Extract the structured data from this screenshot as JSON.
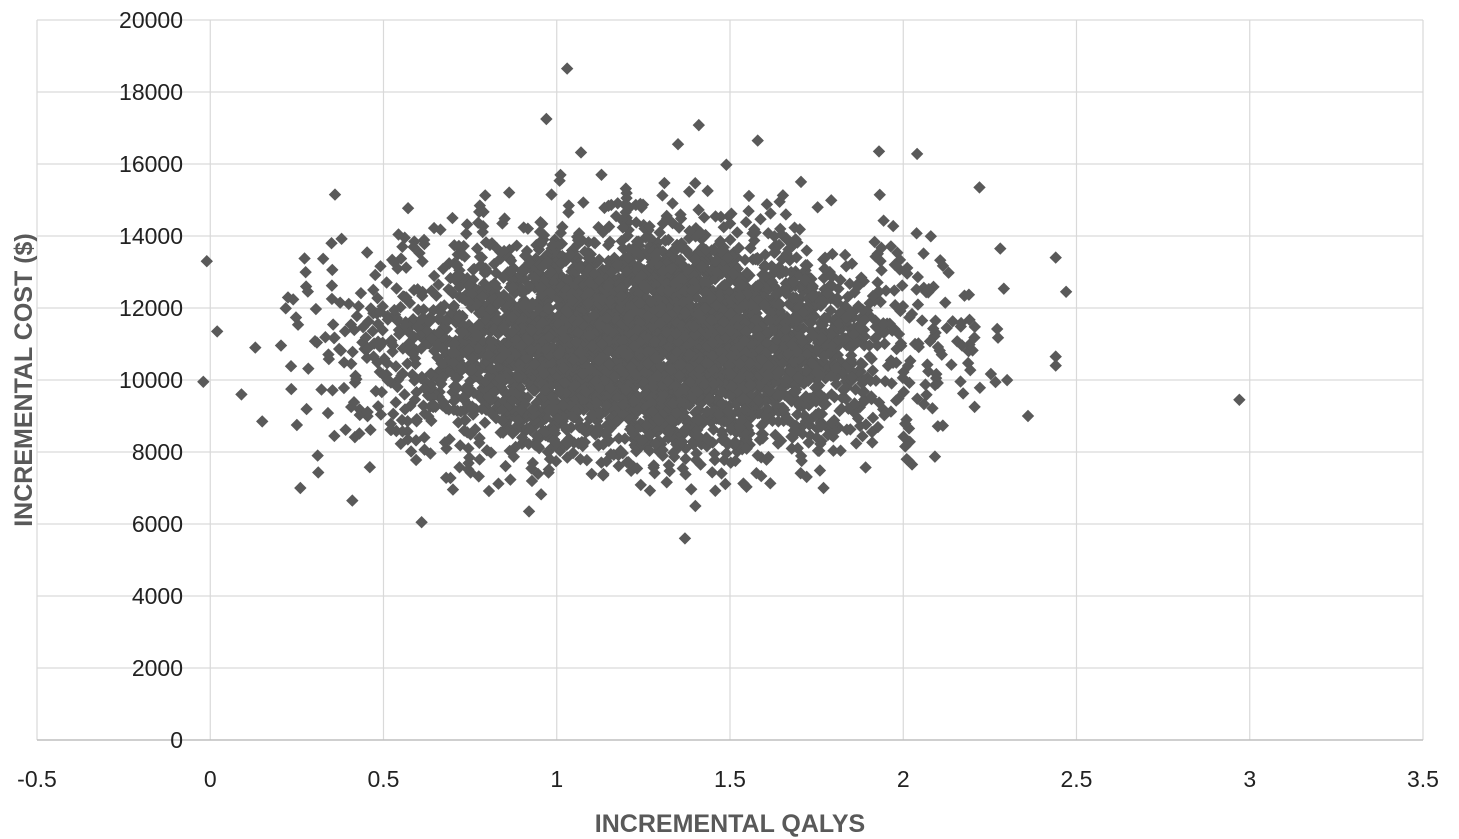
{
  "chart_data": {
    "type": "scatter",
    "title": "",
    "xlabel": "INCREMENTAL QALYS",
    "ylabel": "INCREMENTAL COST ($)",
    "xlim": [
      -0.5,
      3.5
    ],
    "ylim": [
      0,
      20000
    ],
    "x_ticks": [
      "-0.5",
      "0",
      "0.5",
      "1",
      "1.5",
      "2",
      "2.5",
      "3",
      "3.5"
    ],
    "y_ticks": [
      "0",
      "2000",
      "4000",
      "6000",
      "8000",
      "10000",
      "12000",
      "14000",
      "16000",
      "18000",
      "20000"
    ],
    "grid": true,
    "legend": "none",
    "marker": "diamond",
    "marker_color": "#595959",
    "cloud_distribution": {
      "count": 5000,
      "x_mean": 1.25,
      "x_sd": 0.36,
      "y_mean": 11000,
      "y_sd": 1500
    },
    "points": [
      {
        "x": 1.03,
        "y": 18650
      },
      {
        "x": 0.97,
        "y": 17250
      },
      {
        "x": 1.41,
        "y": 17080
      },
      {
        "x": 1.58,
        "y": 16650
      },
      {
        "x": 1.35,
        "y": 16550
      },
      {
        "x": 1.07,
        "y": 16320
      },
      {
        "x": 1.93,
        "y": 16350
      },
      {
        "x": 2.04,
        "y": 16280
      },
      {
        "x": 0.36,
        "y": 15150
      },
      {
        "x": -0.01,
        "y": 13300
      },
      {
        "x": 0.02,
        "y": 11350
      },
      {
        "x": -0.02,
        "y": 9950
      },
      {
        "x": 0.09,
        "y": 9600
      },
      {
        "x": 0.13,
        "y": 10900
      },
      {
        "x": 0.15,
        "y": 8850
      },
      {
        "x": 0.25,
        "y": 8750
      },
      {
        "x": 0.26,
        "y": 7000
      },
      {
        "x": 0.31,
        "y": 7900
      },
      {
        "x": 0.35,
        "y": 13800
      },
      {
        "x": 0.41,
        "y": 6650
      },
      {
        "x": 0.61,
        "y": 6050
      },
      {
        "x": 0.92,
        "y": 6350
      },
      {
        "x": 1.37,
        "y": 5600
      },
      {
        "x": 1.4,
        "y": 6500
      },
      {
        "x": 1.77,
        "y": 7000
      },
      {
        "x": 2.01,
        "y": 7800
      },
      {
        "x": 2.22,
        "y": 15350
      },
      {
        "x": 2.28,
        "y": 13650
      },
      {
        "x": 2.36,
        "y": 9000
      },
      {
        "x": 2.44,
        "y": 13400
      },
      {
        "x": 2.44,
        "y": 10650
      },
      {
        "x": 2.44,
        "y": 10400
      },
      {
        "x": 2.47,
        "y": 12450
      },
      {
        "x": 2.97,
        "y": 9450
      }
    ]
  }
}
